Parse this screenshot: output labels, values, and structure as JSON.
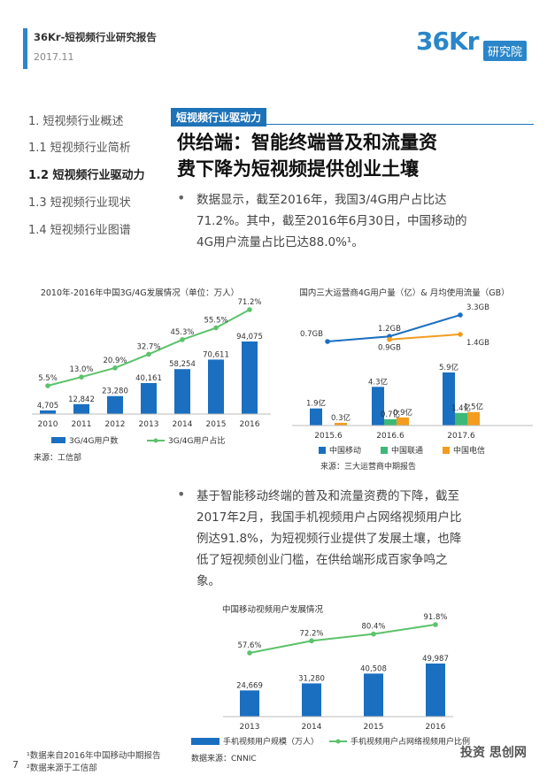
{
  "header": {
    "title": "36Kr-短视频行业研究报告",
    "date": "2017.11",
    "logo_text": "36Kr",
    "logo_badge": "研究院"
  },
  "toc": [
    {
      "label": "1. 短视频行业概述",
      "active": false
    },
    {
      "label": "1.1 短视频行业简析",
      "active": false
    },
    {
      "label": "1.2 短视频行业驱动力",
      "active": true
    },
    {
      "label": "1.3 短视频行业现状",
      "active": false
    },
    {
      "label": "1.4 短视频行业图谱",
      "active": false
    }
  ],
  "section_tag": "短视频行业驱动力",
  "headline_1": "供给端：智能终端普及和流量资",
  "headline_2": "费下降为短视频提供创业土壤",
  "bullet_1": {
    "line1": "数据显示，截至2016年，我国3/4G用户占比达",
    "line2": "71.2%。其中，截至2016年6月30日，中国移动的",
    "line3": "4G用户流量占比已达88.0%¹。"
  },
  "bullet_2": {
    "line1": "基于智能移动终端的普及和流量资费的下降，截至",
    "line2": "2017年2月，我国手机视频用户占网络视频用户比",
    "line3": "例达91.8%，为短视频行业提供了发展土壤，也降",
    "line4": "低了短视频创业门槛，在供给端形成百家争鸣之",
    "line5": "象。"
  },
  "chart_data": [
    {
      "type": "bar",
      "title": "2010年-2016年中国3G/4G发展情况（单位：万人）",
      "categories": [
        "2010",
        "2011",
        "2012",
        "2013",
        "2014",
        "2015",
        "2016"
      ],
      "series": [
        {
          "name": "3G/4G用户数",
          "values": [
            4705,
            12842,
            23280,
            40161,
            58254,
            70611,
            94075
          ],
          "labels": [
            "4,705",
            "12,842",
            "23,280",
            "40,161",
            "58,254",
            "70,611",
            "94,075"
          ]
        },
        {
          "name": "3G/4G用户占比",
          "type": "line",
          "values": [
            5.5,
            13.0,
            20.9,
            32.7,
            45.3,
            55.5,
            71.2
          ],
          "labels": [
            "5.5%",
            "13.0%",
            "20.9%",
            "32.7%",
            "45.3%",
            "55.5%",
            "71.2%"
          ]
        }
      ],
      "source": "来源：工信部",
      "colors": {
        "bar": "#1a6fc0",
        "line": "#5cc26b"
      }
    },
    {
      "type": "bar",
      "title": "国内三大运营商4G用户量（亿）& 月均使用流量（GB）",
      "categories": [
        "2015.6",
        "2016.6",
        "2017.6"
      ],
      "series": [
        {
          "name": "中国移动",
          "values": [
            1.9,
            4.3,
            5.9
          ],
          "labels": [
            "1.9亿",
            "4.3亿",
            "5.9亿"
          ],
          "color": "#1a6fc0"
        },
        {
          "name": "中国联通",
          "values": [
            0,
            0.7,
            1.4
          ],
          "labels": [
            "",
            "0.7亿",
            "1.4亿"
          ],
          "color": "#3cb878"
        },
        {
          "name": "中国电信",
          "values": [
            0.3,
            0.9,
            1.5
          ],
          "labels": [
            "0.3亿",
            "0.9亿",
            "1.5亿"
          ],
          "color": "#f39c1f"
        }
      ],
      "lines": [
        {
          "name": "中国移动流量",
          "values": [
            0.7,
            1.2,
            3.3
          ],
          "labels": [
            "0.7GB",
            "1.2GB",
            "3.3GB"
          ],
          "color": "#1a6fc0"
        },
        {
          "name": "中国电信流量",
          "values": [
            null,
            0.9,
            1.4
          ],
          "labels": [
            "",
            "0.9GB",
            "1.4GB"
          ],
          "color": "#f39c1f"
        }
      ],
      "source": "来源：三大运营商中期报告"
    },
    {
      "type": "bar",
      "title": "中国移动视频用户发展情况",
      "categories": [
        "2013",
        "2014",
        "2015",
        "2016"
      ],
      "series": [
        {
          "name": "手机视频用户规模（万人）",
          "values": [
            24669,
            31280,
            40508,
            49987
          ],
          "labels": [
            "24,669",
            "31,280",
            "40,508",
            "49,987"
          ]
        },
        {
          "name": "手机视频用户占网络视频用户比例",
          "type": "line",
          "values": [
            57.6,
            72.2,
            80.4,
            91.8
          ],
          "labels": [
            "57.6%",
            "72.2%",
            "80.4%",
            "91.8%"
          ]
        }
      ],
      "source": "数据来源：CNNIC",
      "colors": {
        "bar": "#1a6fc0",
        "line": "#5cc26b"
      }
    }
  ],
  "footnotes": {
    "page": "7",
    "fn1": "¹数据来自2016年中国移动中期报告",
    "fn2": "²数据来源于工信部"
  },
  "watermark": "投资 思创网"
}
